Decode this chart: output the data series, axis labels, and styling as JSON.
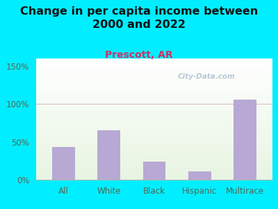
{
  "title": "Change in per capita income between\n2000 and 2022",
  "subtitle": "Prescott, AR",
  "categories": [
    "All",
    "White",
    "Black",
    "Hispanic",
    "Multirace"
  ],
  "values": [
    43,
    65,
    24,
    11,
    106
  ],
  "bar_color": "#b8a8d4",
  "title_fontsize": 11.5,
  "title_color": "#111111",
  "subtitle_fontsize": 10,
  "subtitle_color": "#cc3366",
  "background_outer": "#00eeff",
  "plot_bg_color": "#e8f5e2",
  "yticks": [
    0,
    50,
    100,
    150
  ],
  "ylim": [
    0,
    160
  ],
  "watermark": "City-Data.com",
  "watermark_color": "#aabbcc",
  "hline_color": "#ddbbcc",
  "tick_color": "#556655",
  "spine_color": "#99bbaa"
}
